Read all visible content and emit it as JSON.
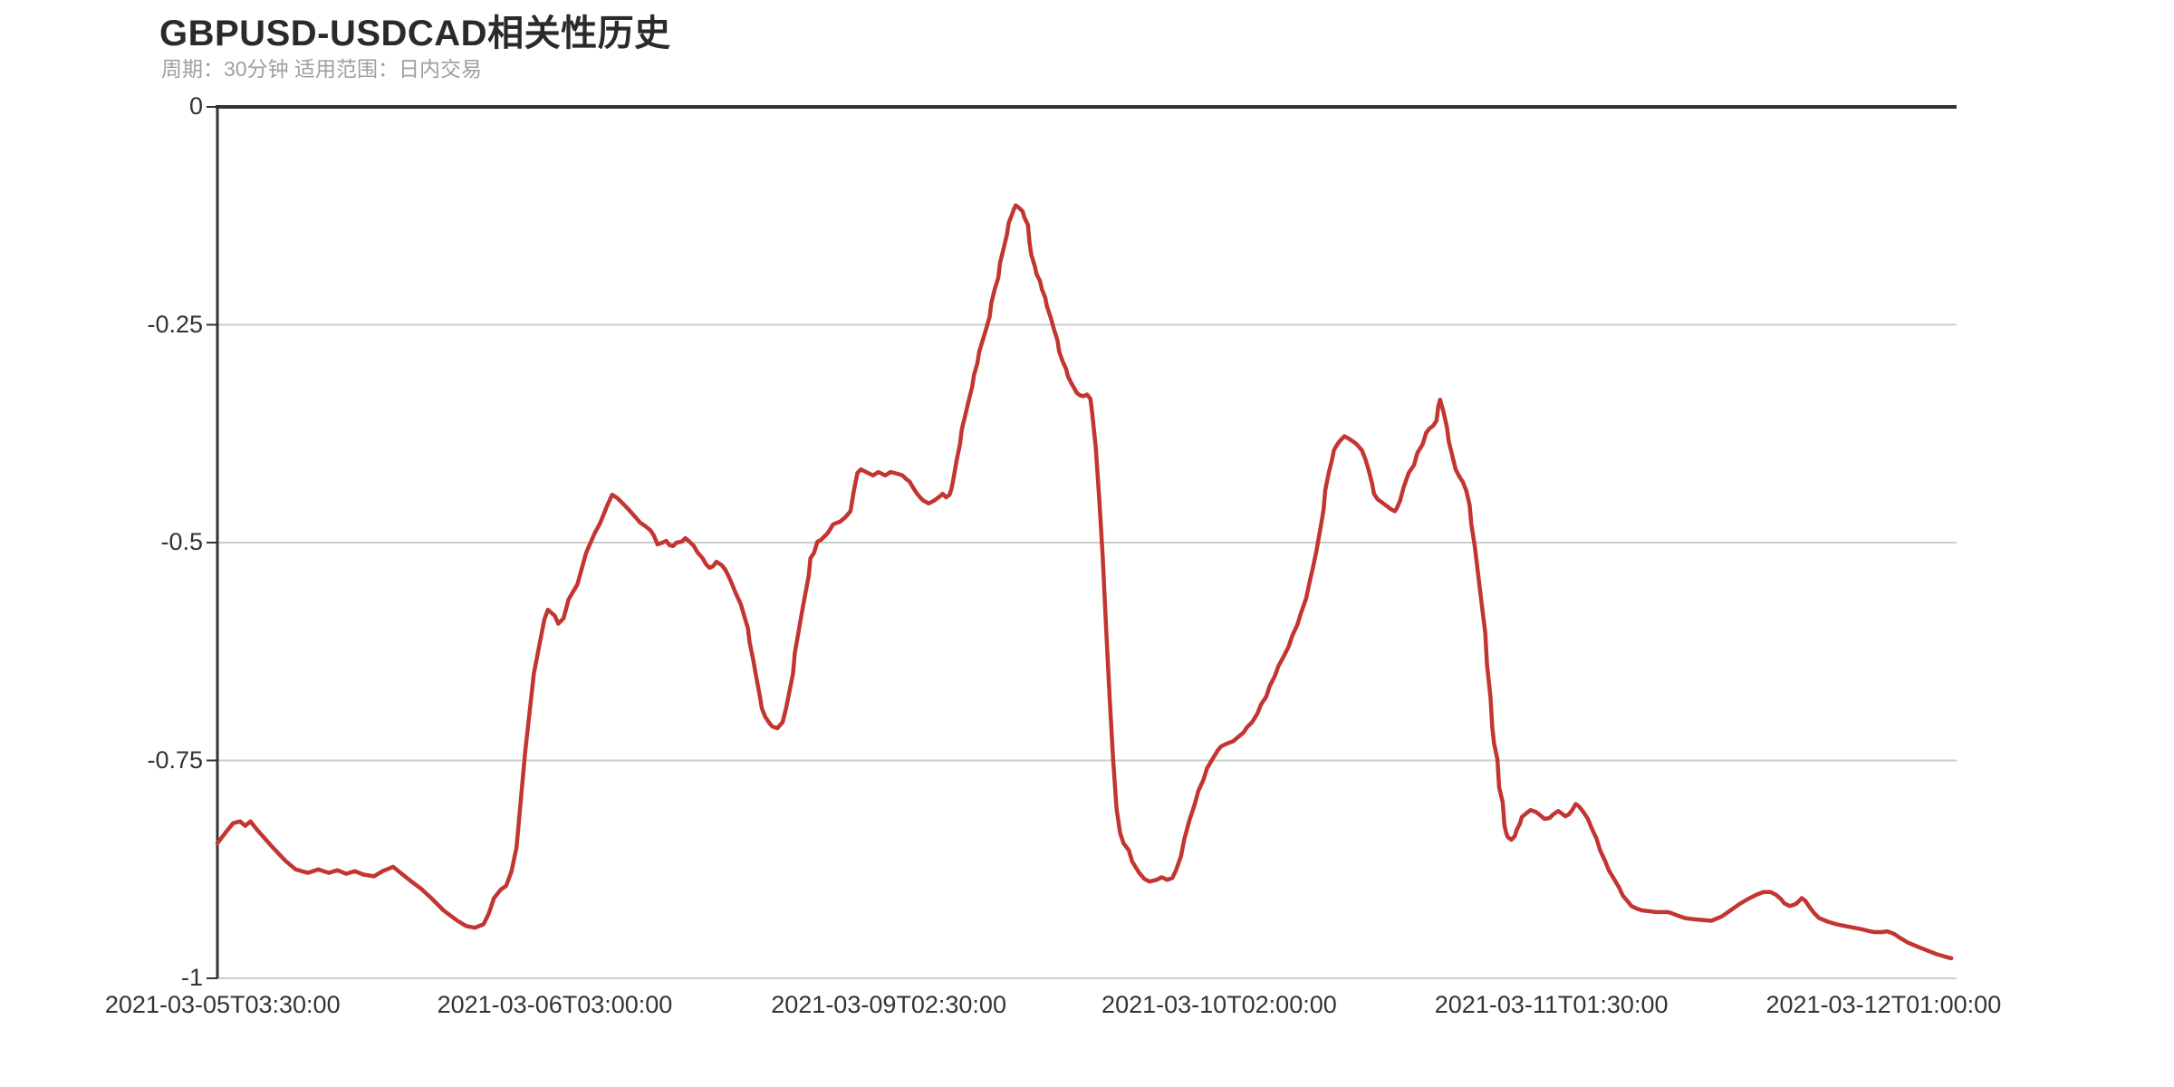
{
  "page": {
    "title": "GBPUSD-USDCAD相关性历史",
    "subtitle": "周期：30分钟 适用范围：日内交易"
  },
  "colors": {
    "line": "#c23531",
    "axis": "#333333",
    "grid": "#cccccc",
    "title": "#2a2a2a",
    "subtitle": "#9f9f9f",
    "tick_label": "#333333",
    "background": "#ffffff"
  },
  "chart_data": {
    "type": "line",
    "title": "GBPUSD-USDCAD相关性历史",
    "subtitle": "周期：30分钟 适用范围：日内交易",
    "series_name": "GBPUSD-USDCAD相关性",
    "line_color": "#c23531",
    "ylim": [
      -1,
      0
    ],
    "legend": "none",
    "grid": "horizontal-gridlines",
    "y_ticks": {
      "labels": [
        "0",
        "-0.25",
        "-0.5",
        "-0.75",
        "-1"
      ],
      "values": [
        0,
        -0.25,
        -0.5,
        -0.75,
        -1
      ]
    },
    "x_ticks": {
      "labels": [
        "2021-03-05T03:30:00",
        "2021-03-06T03:00:00",
        "2021-03-09T02:30:00",
        "2021-03-10T02:00:00",
        "2021-03-11T01:30:00",
        "2021-03-12T01:00:00"
      ],
      "fractions": [
        0.003,
        0.194,
        0.386,
        0.576,
        0.767,
        0.958
      ]
    },
    "points": [
      [
        0.0,
        -0.845
      ],
      [
        0.005,
        -0.832
      ],
      [
        0.009,
        -0.822
      ],
      [
        0.013,
        -0.82
      ],
      [
        0.016,
        -0.825
      ],
      [
        0.019,
        -0.82
      ],
      [
        0.023,
        -0.83
      ],
      [
        0.031,
        -0.848
      ],
      [
        0.039,
        -0.865
      ],
      [
        0.045,
        -0.875
      ],
      [
        0.052,
        -0.879
      ],
      [
        0.058,
        -0.875
      ],
      [
        0.064,
        -0.879
      ],
      [
        0.069,
        -0.876
      ],
      [
        0.074,
        -0.88
      ],
      [
        0.079,
        -0.877
      ],
      [
        0.084,
        -0.881
      ],
      [
        0.09,
        -0.883
      ],
      [
        0.095,
        -0.877
      ],
      [
        0.101,
        -0.872
      ],
      [
        0.106,
        -0.88
      ],
      [
        0.111,
        -0.888
      ],
      [
        0.117,
        -0.897
      ],
      [
        0.123,
        -0.908
      ],
      [
        0.13,
        -0.922
      ],
      [
        0.138,
        -0.934
      ],
      [
        0.143,
        -0.94
      ],
      [
        0.148,
        -0.942
      ],
      [
        0.153,
        -0.938
      ],
      [
        0.156,
        -0.926
      ],
      [
        0.159,
        -0.908
      ],
      [
        0.163,
        -0.898
      ],
      [
        0.166,
        -0.894
      ],
      [
        0.169,
        -0.878
      ],
      [
        0.172,
        -0.85
      ],
      [
        0.177,
        -0.74
      ],
      [
        0.182,
        -0.65
      ],
      [
        0.188,
        -0.588
      ],
      [
        0.19,
        -0.577
      ],
      [
        0.194,
        -0.584
      ],
      [
        0.196,
        -0.593
      ],
      [
        0.199,
        -0.587
      ],
      [
        0.202,
        -0.565
      ],
      [
        0.207,
        -0.548
      ],
      [
        0.212,
        -0.512
      ],
      [
        0.217,
        -0.489
      ],
      [
        0.22,
        -0.478
      ],
      [
        0.224,
        -0.458
      ],
      [
        0.227,
        -0.445
      ],
      [
        0.23,
        -0.449
      ],
      [
        0.233,
        -0.455
      ],
      [
        0.236,
        -0.461
      ],
      [
        0.24,
        -0.47
      ],
      [
        0.243,
        -0.477
      ],
      [
        0.246,
        -0.481
      ],
      [
        0.249,
        -0.486
      ],
      [
        0.251,
        -0.492
      ],
      [
        0.253,
        -0.502
      ],
      [
        0.256,
        -0.5
      ],
      [
        0.258,
        -0.498
      ],
      [
        0.26,
        -0.503
      ],
      [
        0.262,
        -0.504
      ],
      [
        0.264,
        -0.5
      ],
      [
        0.267,
        -0.499
      ],
      [
        0.269,
        -0.495
      ],
      [
        0.271,
        -0.498
      ],
      [
        0.274,
        -0.504
      ],
      [
        0.276,
        -0.511
      ],
      [
        0.279,
        -0.518
      ],
      [
        0.281,
        -0.525
      ],
      [
        0.283,
        -0.529
      ],
      [
        0.285,
        -0.527
      ],
      [
        0.287,
        -0.522
      ],
      [
        0.29,
        -0.526
      ],
      [
        0.292,
        -0.531
      ],
      [
        0.294,
        -0.539
      ],
      [
        0.296,
        -0.548
      ],
      [
        0.298,
        -0.558
      ],
      [
        0.301,
        -0.571
      ],
      [
        0.303,
        -0.585
      ],
      [
        0.305,
        -0.598
      ],
      [
        0.306,
        -0.614
      ],
      [
        0.308,
        -0.634
      ],
      [
        0.31,
        -0.656
      ],
      [
        0.312,
        -0.677
      ],
      [
        0.313,
        -0.69
      ],
      [
        0.315,
        -0.7
      ],
      [
        0.317,
        -0.706
      ],
      [
        0.319,
        -0.711
      ],
      [
        0.322,
        -0.713
      ],
      [
        0.325,
        -0.706
      ],
      [
        0.327,
        -0.69
      ],
      [
        0.329,
        -0.67
      ],
      [
        0.331,
        -0.65
      ],
      [
        0.332,
        -0.627
      ],
      [
        0.334,
        -0.604
      ],
      [
        0.336,
        -0.581
      ],
      [
        0.338,
        -0.559
      ],
      [
        0.34,
        -0.538
      ],
      [
        0.341,
        -0.518
      ],
      [
        0.343,
        -0.512
      ],
      [
        0.345,
        -0.499
      ],
      [
        0.347,
        -0.497
      ],
      [
        0.351,
        -0.489
      ],
      [
        0.354,
        -0.479
      ],
      [
        0.358,
        -0.476
      ],
      [
        0.361,
        -0.471
      ],
      [
        0.364,
        -0.464
      ],
      [
        0.366,
        -0.44
      ],
      [
        0.368,
        -0.42
      ],
      [
        0.37,
        -0.416
      ],
      [
        0.373,
        -0.419
      ],
      [
        0.377,
        -0.423
      ],
      [
        0.38,
        -0.419
      ],
      [
        0.384,
        -0.423
      ],
      [
        0.387,
        -0.419
      ],
      [
        0.391,
        -0.421
      ],
      [
        0.394,
        -0.423
      ],
      [
        0.396,
        -0.427
      ],
      [
        0.398,
        -0.43
      ],
      [
        0.4,
        -0.437
      ],
      [
        0.402,
        -0.443
      ],
      [
        0.404,
        -0.448
      ],
      [
        0.406,
        -0.452
      ],
      [
        0.409,
        -0.455
      ],
      [
        0.412,
        -0.452
      ],
      [
        0.414,
        -0.449
      ],
      [
        0.416,
        -0.446
      ],
      [
        0.417,
        -0.444
      ],
      [
        0.419,
        -0.448
      ],
      [
        0.421,
        -0.445
      ],
      [
        0.422,
        -0.439
      ],
      [
        0.423,
        -0.429
      ],
      [
        0.425,
        -0.406
      ],
      [
        0.427,
        -0.387
      ],
      [
        0.428,
        -0.37
      ],
      [
        0.43,
        -0.354
      ],
      [
        0.432,
        -0.337
      ],
      [
        0.434,
        -0.321
      ],
      [
        0.435,
        -0.308
      ],
      [
        0.437,
        -0.294
      ],
      [
        0.438,
        -0.281
      ],
      [
        0.44,
        -0.268
      ],
      [
        0.442,
        -0.255
      ],
      [
        0.444,
        -0.241
      ],
      [
        0.445,
        -0.225
      ],
      [
        0.447,
        -0.209
      ],
      [
        0.449,
        -0.196
      ],
      [
        0.45,
        -0.179
      ],
      [
        0.452,
        -0.163
      ],
      [
        0.454,
        -0.146
      ],
      [
        0.455,
        -0.133
      ],
      [
        0.457,
        -0.123
      ],
      [
        0.458,
        -0.117
      ],
      [
        0.459,
        -0.113
      ],
      [
        0.461,
        -0.116
      ],
      [
        0.463,
        -0.12
      ],
      [
        0.464,
        -0.127
      ],
      [
        0.466,
        -0.135
      ],
      [
        0.467,
        -0.156
      ],
      [
        0.468,
        -0.17
      ],
      [
        0.47,
        -0.183
      ],
      [
        0.471,
        -0.192
      ],
      [
        0.473,
        -0.2
      ],
      [
        0.474,
        -0.209
      ],
      [
        0.476,
        -0.219
      ],
      [
        0.477,
        -0.229
      ],
      [
        0.479,
        -0.241
      ],
      [
        0.481,
        -0.255
      ],
      [
        0.483,
        -0.268
      ],
      [
        0.484,
        -0.281
      ],
      [
        0.486,
        -0.292
      ],
      [
        0.488,
        -0.301
      ],
      [
        0.489,
        -0.309
      ],
      [
        0.491,
        -0.317
      ],
      [
        0.493,
        -0.324
      ],
      [
        0.494,
        -0.328
      ],
      [
        0.496,
        -0.331
      ],
      [
        0.498,
        -0.332
      ],
      [
        0.5,
        -0.33
      ],
      [
        0.502,
        -0.335
      ],
      [
        0.503,
        -0.352
      ],
      [
        0.505,
        -0.39
      ],
      [
        0.507,
        -0.448
      ],
      [
        0.509,
        -0.515
      ],
      [
        0.511,
        -0.598
      ],
      [
        0.513,
        -0.678
      ],
      [
        0.515,
        -0.748
      ],
      [
        0.517,
        -0.805
      ],
      [
        0.519,
        -0.833
      ],
      [
        0.521,
        -0.845
      ],
      [
        0.524,
        -0.853
      ],
      [
        0.526,
        -0.866
      ],
      [
        0.53,
        -0.879
      ],
      [
        0.533,
        -0.886
      ],
      [
        0.536,
        -0.889
      ],
      [
        0.54,
        -0.887
      ],
      [
        0.543,
        -0.884
      ],
      [
        0.546,
        -0.887
      ],
      [
        0.549,
        -0.885
      ],
      [
        0.551,
        -0.877
      ],
      [
        0.554,
        -0.86
      ],
      [
        0.556,
        -0.84
      ],
      [
        0.559,
        -0.818
      ],
      [
        0.562,
        -0.8
      ],
      [
        0.564,
        -0.785
      ],
      [
        0.567,
        -0.772
      ],
      [
        0.569,
        -0.759
      ],
      [
        0.572,
        -0.749
      ],
      [
        0.575,
        -0.739
      ],
      [
        0.577,
        -0.734
      ],
      [
        0.58,
        -0.731
      ],
      [
        0.584,
        -0.728
      ],
      [
        0.587,
        -0.723
      ],
      [
        0.59,
        -0.718
      ],
      [
        0.592,
        -0.712
      ],
      [
        0.595,
        -0.706
      ],
      [
        0.598,
        -0.696
      ],
      [
        0.6,
        -0.686
      ],
      [
        0.603,
        -0.677
      ],
      [
        0.605,
        -0.665
      ],
      [
        0.608,
        -0.653
      ],
      [
        0.61,
        -0.642
      ],
      [
        0.613,
        -0.631
      ],
      [
        0.616,
        -0.619
      ],
      [
        0.618,
        -0.607
      ],
      [
        0.621,
        -0.594
      ],
      [
        0.623,
        -0.581
      ],
      [
        0.626,
        -0.564
      ],
      [
        0.628,
        -0.545
      ],
      [
        0.63,
        -0.528
      ],
      [
        0.632,
        -0.509
      ],
      [
        0.634,
        -0.486
      ],
      [
        0.636,
        -0.463
      ],
      [
        0.637,
        -0.44
      ],
      [
        0.639,
        -0.42
      ],
      [
        0.641,
        -0.404
      ],
      [
        0.642,
        -0.394
      ],
      [
        0.644,
        -0.387
      ],
      [
        0.646,
        -0.382
      ],
      [
        0.648,
        -0.378
      ],
      [
        0.65,
        -0.38
      ],
      [
        0.653,
        -0.384
      ],
      [
        0.655,
        -0.387
      ],
      [
        0.658,
        -0.394
      ],
      [
        0.66,
        -0.404
      ],
      [
        0.662,
        -0.417
      ],
      [
        0.664,
        -0.433
      ],
      [
        0.665,
        -0.444
      ],
      [
        0.667,
        -0.45
      ],
      [
        0.669,
        -0.453
      ],
      [
        0.671,
        -0.456
      ],
      [
        0.673,
        -0.459
      ],
      [
        0.675,
        -0.462
      ],
      [
        0.677,
        -0.464
      ],
      [
        0.678,
        -0.461
      ],
      [
        0.68,
        -0.452
      ],
      [
        0.682,
        -0.437
      ],
      [
        0.685,
        -0.42
      ],
      [
        0.688,
        -0.411
      ],
      [
        0.69,
        -0.397
      ],
      [
        0.693,
        -0.387
      ],
      [
        0.695,
        -0.374
      ],
      [
        0.697,
        -0.369
      ],
      [
        0.699,
        -0.366
      ],
      [
        0.701,
        -0.36
      ],
      [
        0.702,
        -0.344
      ],
      [
        0.703,
        -0.336
      ],
      [
        0.705,
        -0.35
      ],
      [
        0.707,
        -0.368
      ],
      [
        0.708,
        -0.384
      ],
      [
        0.71,
        -0.4
      ],
      [
        0.712,
        -0.416
      ],
      [
        0.714,
        -0.424
      ],
      [
        0.716,
        -0.43
      ],
      [
        0.718,
        -0.44
      ],
      [
        0.72,
        -0.457
      ],
      [
        0.721,
        -0.479
      ],
      [
        0.723,
        -0.505
      ],
      [
        0.725,
        -0.538
      ],
      [
        0.727,
        -0.571
      ],
      [
        0.729,
        -0.604
      ],
      [
        0.73,
        -0.64
      ],
      [
        0.732,
        -0.677
      ],
      [
        0.733,
        -0.712
      ],
      [
        0.734,
        -0.73
      ],
      [
        0.736,
        -0.749
      ],
      [
        0.737,
        -0.781
      ],
      [
        0.739,
        -0.798
      ],
      [
        0.74,
        -0.824
      ],
      [
        0.741,
        -0.833
      ],
      [
        0.742,
        -0.838
      ],
      [
        0.744,
        -0.841
      ],
      [
        0.746,
        -0.837
      ],
      [
        0.747,
        -0.83
      ],
      [
        0.749,
        -0.822
      ],
      [
        0.75,
        -0.815
      ],
      [
        0.753,
        -0.81
      ],
      [
        0.755,
        -0.807
      ],
      [
        0.758,
        -0.809
      ],
      [
        0.76,
        -0.812
      ],
      [
        0.763,
        -0.817
      ],
      [
        0.766,
        -0.816
      ],
      [
        0.768,
        -0.812
      ],
      [
        0.771,
        -0.808
      ],
      [
        0.773,
        -0.811
      ],
      [
        0.775,
        -0.814
      ],
      [
        0.777,
        -0.812
      ],
      [
        0.779,
        -0.807
      ],
      [
        0.781,
        -0.8
      ],
      [
        0.783,
        -0.803
      ],
      [
        0.785,
        -0.808
      ],
      [
        0.788,
        -0.817
      ],
      [
        0.79,
        -0.827
      ],
      [
        0.793,
        -0.84
      ],
      [
        0.795,
        -0.853
      ],
      [
        0.798,
        -0.866
      ],
      [
        0.8,
        -0.876
      ],
      [
        0.803,
        -0.886
      ],
      [
        0.806,
        -0.896
      ],
      [
        0.808,
        -0.905
      ],
      [
        0.811,
        -0.912
      ],
      [
        0.813,
        -0.917
      ],
      [
        0.816,
        -0.92
      ],
      [
        0.819,
        -0.922
      ],
      [
        0.823,
        -0.923
      ],
      [
        0.827,
        -0.924
      ],
      [
        0.831,
        -0.924
      ],
      [
        0.834,
        -0.924
      ],
      [
        0.837,
        -0.926
      ],
      [
        0.841,
        -0.929
      ],
      [
        0.844,
        -0.931
      ],
      [
        0.848,
        -0.932
      ],
      [
        0.853,
        -0.933
      ],
      [
        0.859,
        -0.934
      ],
      [
        0.865,
        -0.929
      ],
      [
        0.87,
        -0.922
      ],
      [
        0.875,
        -0.915
      ],
      [
        0.88,
        -0.909
      ],
      [
        0.885,
        -0.904
      ],
      [
        0.889,
        -0.901
      ],
      [
        0.893,
        -0.901
      ],
      [
        0.896,
        -0.904
      ],
      [
        0.899,
        -0.909
      ],
      [
        0.901,
        -0.914
      ],
      [
        0.904,
        -0.917
      ],
      [
        0.906,
        -0.916
      ],
      [
        0.908,
        -0.914
      ],
      [
        0.91,
        -0.91
      ],
      [
        0.911,
        -0.908
      ],
      [
        0.913,
        -0.911
      ],
      [
        0.915,
        -0.917
      ],
      [
        0.918,
        -0.925
      ],
      [
        0.921,
        -0.931
      ],
      [
        0.926,
        -0.935
      ],
      [
        0.931,
        -0.938
      ],
      [
        0.936,
        -0.94
      ],
      [
        0.941,
        -0.942
      ],
      [
        0.946,
        -0.944
      ],
      [
        0.95,
        -0.946
      ],
      [
        0.953,
        -0.947
      ],
      [
        0.957,
        -0.947
      ],
      [
        0.96,
        -0.946
      ],
      [
        0.964,
        -0.949
      ],
      [
        0.967,
        -0.953
      ],
      [
        0.972,
        -0.959
      ],
      [
        0.978,
        -0.964
      ],
      [
        0.983,
        -0.968
      ],
      [
        0.988,
        -0.972
      ],
      [
        0.993,
        -0.975
      ],
      [
        0.997,
        -0.977
      ]
    ]
  }
}
